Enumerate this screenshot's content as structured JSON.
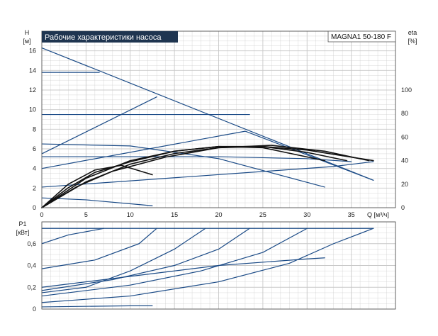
{
  "header": {
    "title": "Рабочие характеристики насоса",
    "model": "MAGNA1 50-180 F"
  },
  "colors": {
    "title_bg": "#1f3550",
    "curve_blue": "#1a4a86",
    "curve_black": "#111111",
    "grid": "#c8c8c8"
  },
  "chart_data": [
    {
      "type": "line",
      "id": "head",
      "ylabel": "H",
      "yunit": "[м]",
      "y2label": "eta",
      "y2unit": "[%]",
      "xlabel": "Q [м³/ч]",
      "xlim": [
        0,
        40
      ],
      "ylim": [
        0,
        18
      ],
      "y2lim": [
        0,
        150
      ],
      "xticks": [
        0,
        5,
        10,
        15,
        20,
        25,
        30,
        35
      ],
      "yticks": [
        0,
        2,
        4,
        6,
        8,
        10,
        12,
        14,
        16
      ],
      "y2ticks": [
        0,
        20,
        40,
        60,
        80,
        100
      ],
      "grid": true,
      "series": [
        {
          "kind": "head",
          "points": [
            [
              0,
              16.3
            ],
            [
              37.5,
              2.8
            ]
          ]
        },
        {
          "kind": "head",
          "points": [
            [
              0,
              13.8
            ],
            [
              6.5,
              13.8
            ]
          ]
        },
        {
          "kind": "head",
          "points": [
            [
              0,
              9.5
            ],
            [
              23.5,
              9.5
            ]
          ]
        },
        {
          "kind": "head",
          "points": [
            [
              0,
              6.5
            ],
            [
              10,
              6.3
            ],
            [
              20,
              5
            ],
            [
              32,
              2.1
            ]
          ]
        },
        {
          "kind": "head",
          "points": [
            [
              0,
              5.2
            ],
            [
              20,
              5.2
            ],
            [
              30,
              5.0
            ],
            [
              35,
              4.7
            ]
          ]
        },
        {
          "kind": "head",
          "points": [
            [
              0,
              4
            ],
            [
              23,
              7.8
            ],
            [
              37.5,
              2.8
            ]
          ]
        },
        {
          "kind": "head",
          "points": [
            [
              0,
              2.1
            ],
            [
              33,
              4.2
            ],
            [
              37.5,
              4.7
            ]
          ]
        },
        {
          "kind": "head",
          "points": [
            [
              0,
              5.5
            ],
            [
              13,
              11.3
            ]
          ]
        },
        {
          "kind": "head",
          "points": [
            [
              0,
              1.0
            ],
            [
              5,
              0.8
            ],
            [
              12.5,
              0.2
            ]
          ]
        },
        {
          "kind": "eta",
          "points": [
            [
              0,
              0
            ],
            [
              5,
              25
            ],
            [
              10,
              40
            ],
            [
              15,
              48
            ],
            [
              20,
              52
            ],
            [
              25,
              52
            ],
            [
              30,
              47
            ],
            [
              34.5,
              40
            ]
          ]
        },
        {
          "kind": "eta",
          "points": [
            [
              0,
              0
            ],
            [
              5,
              22
            ],
            [
              10,
              37
            ],
            [
              15,
              46
            ],
            [
              20,
              51
            ],
            [
              25,
              52
            ],
            [
              30,
              49
            ],
            [
              37.5,
              40
            ]
          ]
        },
        {
          "kind": "eta",
          "points": [
            [
              0,
              0
            ],
            [
              4,
              18
            ],
            [
              8,
              31
            ],
            [
              14,
              43
            ],
            [
              20,
              51
            ],
            [
              26,
              53
            ],
            [
              32,
              48
            ],
            [
              37,
              40
            ]
          ]
        },
        {
          "kind": "eta",
          "points": [
            [
              0,
              0
            ],
            [
              3,
              17
            ],
            [
              6,
              30
            ],
            [
              10,
              39
            ],
            [
              15,
              48
            ],
            [
              20,
              52
            ],
            [
              25,
              51
            ],
            [
              32,
              40
            ]
          ]
        },
        {
          "kind": "eta",
          "points": [
            [
              0,
              0
            ],
            [
              3,
              20
            ],
            [
              6,
              32
            ],
            [
              9,
              36
            ],
            [
              12.5,
              28
            ]
          ]
        }
      ]
    },
    {
      "type": "line",
      "id": "power",
      "ylabel": "P1",
      "yunit": "[кВт]",
      "xlim": [
        0,
        40
      ],
      "ylim": [
        0,
        0.8
      ],
      "xticks": [
        0,
        5,
        10,
        15,
        20,
        25,
        30,
        35
      ],
      "yticks": [
        0,
        0.2,
        0.4,
        0.6
      ],
      "ytick_labels": [
        "0",
        "0,2",
        "0,4",
        "0,6"
      ],
      "grid": true,
      "series": [
        {
          "kind": "power",
          "points": [
            [
              0,
              0.74
            ],
            [
              37.5,
              0.74
            ]
          ]
        },
        {
          "kind": "power",
          "points": [
            [
              0,
              0.6
            ],
            [
              3,
              0.68
            ],
            [
              7,
              0.74
            ]
          ]
        },
        {
          "kind": "power",
          "points": [
            [
              0,
              0.37
            ],
            [
              6,
              0.45
            ],
            [
              11,
              0.6
            ],
            [
              13,
              0.74
            ]
          ]
        },
        {
          "kind": "power",
          "points": [
            [
              0,
              0.15
            ],
            [
              5,
              0.2
            ],
            [
              10,
              0.35
            ],
            [
              15,
              0.55
            ],
            [
              18.5,
              0.74
            ]
          ]
        },
        {
          "kind": "power",
          "points": [
            [
              0,
              0.17
            ],
            [
              8,
              0.27
            ],
            [
              15,
              0.4
            ],
            [
              20,
              0.55
            ],
            [
              23.5,
              0.74
            ]
          ]
        },
        {
          "kind": "power",
          "points": [
            [
              0,
              0.12
            ],
            [
              10,
              0.22
            ],
            [
              18,
              0.35
            ],
            [
              25,
              0.52
            ],
            [
              30,
              0.74
            ]
          ]
        },
        {
          "kind": "power",
          "points": [
            [
              0,
              0.06
            ],
            [
              10,
              0.12
            ],
            [
              20,
              0.25
            ],
            [
              28,
              0.42
            ],
            [
              33,
              0.6
            ],
            [
              37.5,
              0.74
            ]
          ]
        },
        {
          "kind": "power",
          "points": [
            [
              0,
              0.2
            ],
            [
              10,
              0.3
            ],
            [
              20,
              0.4
            ],
            [
              30,
              0.46
            ],
            [
              32,
              0.47
            ]
          ]
        },
        {
          "kind": "power",
          "points": [
            [
              0,
              0.02
            ],
            [
              10,
              0.03
            ],
            [
              12.5,
              0.03
            ]
          ]
        }
      ]
    }
  ]
}
